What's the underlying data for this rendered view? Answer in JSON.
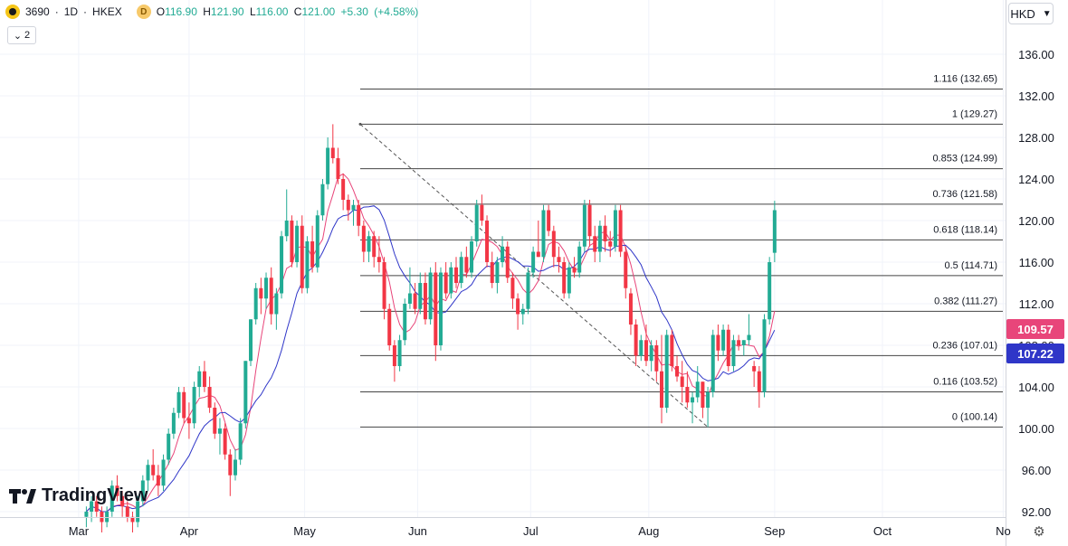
{
  "header": {
    "symbol": "3690",
    "interval": "1D",
    "exchange": "HKEX",
    "title_sep": "·",
    "badge": "D",
    "open_label": "O",
    "open": "116.90",
    "high_label": "H",
    "high": "121.90",
    "low_label": "L",
    "low": "116.00",
    "close_label": "C",
    "close": "121.00",
    "change": "+5.30",
    "change_pct": "(+4.58%)",
    "indicators_count": "2"
  },
  "currency": "HKD",
  "brand": "TradingView",
  "colors": {
    "up": "#22ab94",
    "down": "#f23645",
    "ma_fast": "#e8457a",
    "ma_slow": "#2f36c8",
    "fib_line": "#444444"
  },
  "chart_data": {
    "type": "candlestick",
    "symbol": "3690",
    "ylim": [
      92,
      138
    ],
    "y_ticks": [
      "136.00",
      "132.00",
      "128.00",
      "124.00",
      "120.00",
      "116.00",
      "112.00",
      "108.00",
      "104.00",
      "100.00",
      "96.00",
      "92.00"
    ],
    "x_ticks": [
      "Mar",
      "Apr",
      "May",
      "Jun",
      "Jul",
      "Aug",
      "Sep",
      "Oct",
      "No"
    ],
    "price_badges": [
      {
        "value": "109.57",
        "color": "#e8457a"
      },
      {
        "value": "107.22",
        "color": "#2f36c8"
      }
    ],
    "fibonacci": [
      {
        "label": "1.116 (132.65)",
        "price": 132.65
      },
      {
        "label": "1 (129.27)",
        "price": 129.27
      },
      {
        "label": "0.853 (124.99)",
        "price": 124.99
      },
      {
        "label": "0.736 (121.58)",
        "price": 121.58
      },
      {
        "label": "0.618 (118.14)",
        "price": 118.14
      },
      {
        "label": "0.5 (114.71)",
        "price": 114.71
      },
      {
        "label": "0.382 (111.27)",
        "price": 111.27
      },
      {
        "label": "0.236 (107.01)",
        "price": 107.01
      },
      {
        "label": "0.116 (103.52)",
        "price": 103.52
      },
      {
        "label": "0 (100.14)",
        "price": 100.14
      }
    ],
    "candles": [
      [
        91.5,
        92.5,
        90.5,
        92.0
      ],
      [
        92.0,
        93.5,
        91.0,
        93.0
      ],
      [
        93.0,
        93.5,
        91.5,
        92.0
      ],
      [
        92.0,
        92.5,
        90.0,
        91.0
      ],
      [
        91.0,
        92.5,
        90.5,
        92.0
      ],
      [
        92.0,
        95.0,
        91.5,
        94.5
      ],
      [
        94.5,
        95.5,
        93.0,
        93.5
      ],
      [
        93.5,
        94.0,
        91.5,
        92.5
      ],
      [
        92.5,
        93.0,
        91.0,
        91.5
      ],
      [
        91.5,
        92.0,
        90.0,
        91.0
      ],
      [
        91.0,
        93.5,
        90.5,
        93.0
      ],
      [
        93.0,
        95.5,
        92.5,
        95.0
      ],
      [
        95.0,
        97.0,
        94.0,
        96.5
      ],
      [
        96.5,
        98.0,
        95.0,
        95.5
      ],
      [
        95.5,
        96.5,
        93.5,
        94.5
      ],
      [
        94.5,
        97.5,
        94.0,
        97.0
      ],
      [
        97.0,
        100.0,
        96.5,
        99.5
      ],
      [
        99.5,
        102.0,
        99.0,
        101.5
      ],
      [
        101.5,
        104.0,
        101.0,
        103.5
      ],
      [
        103.5,
        104.0,
        100.5,
        101.0
      ],
      [
        101.0,
        102.5,
        99.0,
        100.5
      ],
      [
        100.5,
        104.5,
        100.0,
        104.0
      ],
      [
        104.0,
        106.0,
        103.0,
        105.5
      ],
      [
        105.5,
        106.5,
        103.5,
        104.0
      ],
      [
        104.0,
        105.0,
        101.5,
        102.0
      ],
      [
        102.0,
        102.5,
        99.0,
        99.5
      ],
      [
        99.5,
        101.0,
        97.5,
        100.0
      ],
      [
        100.0,
        100.5,
        97.0,
        97.5
      ],
      [
        97.5,
        98.0,
        93.5,
        95.5
      ],
      [
        95.5,
        98.0,
        95.0,
        97.0
      ],
      [
        97.0,
        101.0,
        96.5,
        100.5
      ],
      [
        100.5,
        106.5,
        100.0,
        106.5
      ],
      [
        106.5,
        110.5,
        106.0,
        110.5
      ],
      [
        110.5,
        114.0,
        110.0,
        113.5
      ],
      [
        113.5,
        114.5,
        111.0,
        112.5
      ],
      [
        112.5,
        115.0,
        111.5,
        114.5
      ],
      [
        114.5,
        115.5,
        110.0,
        111.0
      ],
      [
        111.0,
        113.5,
        109.5,
        113.0
      ],
      [
        113.0,
        119.0,
        112.5,
        118.5
      ],
      [
        118.5,
        123.0,
        118.0,
        120.0
      ],
      [
        120.0,
        120.5,
        115.5,
        116.0
      ],
      [
        116.0,
        120.0,
        115.5,
        119.5
      ],
      [
        119.5,
        120.5,
        113.0,
        113.5
      ],
      [
        113.5,
        118.5,
        113.0,
        118.0
      ],
      [
        118.0,
        119.5,
        115.0,
        115.5
      ],
      [
        115.5,
        121.0,
        115.0,
        120.5
      ],
      [
        120.5,
        124.0,
        120.0,
        123.5
      ],
      [
        123.5,
        128.0,
        123.0,
        127.0
      ],
      [
        127.0,
        129.27,
        125.5,
        126.0
      ],
      [
        126.0,
        127.0,
        123.5,
        124.0
      ],
      [
        124.0,
        124.5,
        121.0,
        122.0
      ],
      [
        122.0,
        122.5,
        120.0,
        121.0
      ],
      [
        121.0,
        122.0,
        119.5,
        121.5
      ],
      [
        121.5,
        122.0,
        118.5,
        119.5
      ],
      [
        119.5,
        120.0,
        116.0,
        117.0
      ],
      [
        117.0,
        119.0,
        116.0,
        118.5
      ],
      [
        118.5,
        119.0,
        115.5,
        116.5
      ],
      [
        116.5,
        118.5,
        115.0,
        116.0
      ],
      [
        116.0,
        116.5,
        110.5,
        111.5
      ],
      [
        111.5,
        112.0,
        107.5,
        108.0
      ],
      [
        108.0,
        108.5,
        104.5,
        106.0
      ],
      [
        106.0,
        109.0,
        105.5,
        108.5
      ],
      [
        108.5,
        112.5,
        108.0,
        112.0
      ],
      [
        112.0,
        115.5,
        111.5,
        113.0
      ],
      [
        113.0,
        114.0,
        111.0,
        111.5
      ],
      [
        111.5,
        115.0,
        111.0,
        114.0
      ],
      [
        114.0,
        115.0,
        110.0,
        110.5
      ],
      [
        110.5,
        115.5,
        110.0,
        115.0
      ],
      [
        115.0,
        116.0,
        106.5,
        108.0
      ],
      [
        108.0,
        115.5,
        107.5,
        115.0
      ],
      [
        115.0,
        116.0,
        112.5,
        113.0
      ],
      [
        113.0,
        116.0,
        112.5,
        115.5
      ],
      [
        115.5,
        116.5,
        113.5,
        114.0
      ],
      [
        114.0,
        117.0,
        113.5,
        116.5
      ],
      [
        116.5,
        117.5,
        114.5,
        115.0
      ],
      [
        115.0,
        118.5,
        114.5,
        118.0
      ],
      [
        118.0,
        122.0,
        117.5,
        121.5
      ],
      [
        121.5,
        122.5,
        119.5,
        120.0
      ],
      [
        120.0,
        120.5,
        115.5,
        116.0
      ],
      [
        116.0,
        117.0,
        113.5,
        114.0
      ],
      [
        114.0,
        116.5,
        113.0,
        116.0
      ],
      [
        116.0,
        118.5,
        115.5,
        117.5
      ],
      [
        117.5,
        118.0,
        114.0,
        114.5
      ],
      [
        114.5,
        115.0,
        111.5,
        112.5
      ],
      [
        112.5,
        113.0,
        109.5,
        111.0
      ],
      [
        111.0,
        112.0,
        110.0,
        111.5
      ],
      [
        111.5,
        115.5,
        111.0,
        115.0
      ],
      [
        115.0,
        117.5,
        114.5,
        117.0
      ],
      [
        117.0,
        120.0,
        116.5,
        116.5
      ],
      [
        116.5,
        121.5,
        116.0,
        121.0
      ],
      [
        121.0,
        121.5,
        118.5,
        119.0
      ],
      [
        119.0,
        119.5,
        115.5,
        116.5
      ],
      [
        116.5,
        117.5,
        115.0,
        116.0
      ],
      [
        116.0,
        116.5,
        112.5,
        113.0
      ],
      [
        113.0,
        116.0,
        112.5,
        115.5
      ],
      [
        115.5,
        116.5,
        114.5,
        115.0
      ],
      [
        115.0,
        118.0,
        114.5,
        117.5
      ],
      [
        117.5,
        122.0,
        117.0,
        121.5
      ],
      [
        121.5,
        122.0,
        117.5,
        118.5
      ],
      [
        118.5,
        119.5,
        116.0,
        117.0
      ],
      [
        117.0,
        120.0,
        116.0,
        119.5
      ],
      [
        119.5,
        120.5,
        117.0,
        118.0
      ],
      [
        118.0,
        119.0,
        116.5,
        117.5
      ],
      [
        117.5,
        121.5,
        117.0,
        121.0
      ],
      [
        121.0,
        121.5,
        116.5,
        117.0
      ],
      [
        117.0,
        117.5,
        112.5,
        113.5
      ],
      [
        113.0,
        113.5,
        109.0,
        110.0
      ],
      [
        110.0,
        110.5,
        106.0,
        107.0
      ],
      [
        107.0,
        109.0,
        106.5,
        108.5
      ],
      [
        108.5,
        110.0,
        106.0,
        106.5
      ],
      [
        106.5,
        108.5,
        105.5,
        108.0
      ],
      [
        108.0,
        108.5,
        104.5,
        105.5
      ],
      [
        105.5,
        109.0,
        100.5,
        102.0
      ],
      [
        102.0,
        109.5,
        101.5,
        109.0
      ],
      [
        109.0,
        109.5,
        105.5,
        106.0
      ],
      [
        106.0,
        107.0,
        104.5,
        105.0
      ],
      [
        105.0,
        106.5,
        102.5,
        104.0
      ],
      [
        104.0,
        105.5,
        102.0,
        102.5
      ],
      [
        102.5,
        103.5,
        100.5,
        103.0
      ],
      [
        103.0,
        106.0,
        102.5,
        104.5
      ],
      [
        104.5,
        104.5,
        101.0,
        102.0
      ],
      [
        102.0,
        104.0,
        100.14,
        103.5
      ],
      [
        103.5,
        109.5,
        103.0,
        109.0
      ],
      [
        109.0,
        110.0,
        106.5,
        107.5
      ],
      [
        107.5,
        110.0,
        107.0,
        109.5
      ],
      [
        109.5,
        110.0,
        105.5,
        106.0
      ],
      [
        106.0,
        109.0,
        105.5,
        108.5
      ],
      [
        108.5,
        109.0,
        107.5,
        108.0
      ],
      [
        108.0,
        108.5,
        107.0,
        108.5
      ],
      [
        108.5,
        111.0,
        108.0,
        109.0
      ],
      [
        106.0,
        106.5,
        104.0,
        105.5
      ],
      [
        105.5,
        106.0,
        102.0,
        103.5
      ],
      [
        103.5,
        111.0,
        103.0,
        110.5
      ],
      [
        110.5,
        116.5,
        110.0,
        116.0
      ],
      [
        116.9,
        121.9,
        116.0,
        121.0
      ]
    ]
  }
}
